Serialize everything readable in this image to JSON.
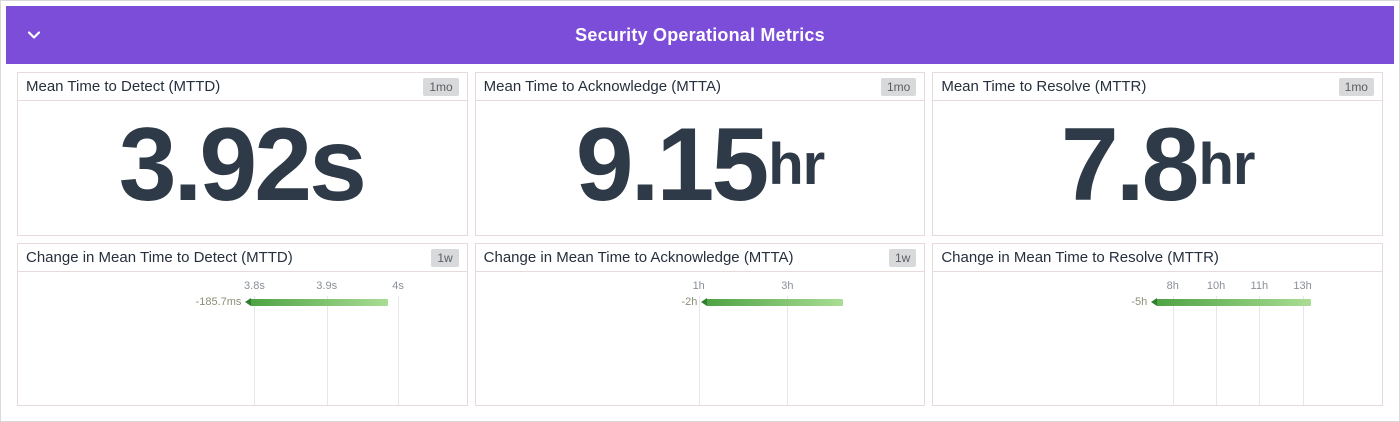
{
  "colors": {
    "header_bg": "#7c4dd8",
    "header_text": "#ffffff",
    "panel_border": "#e7dada",
    "stat_text": "#2e3a47",
    "badge_bg": "#d8d9da",
    "bar_gradient_start": "#4fa344",
    "bar_gradient_end": "#aadd94",
    "marker_green": "#2f7d2f"
  },
  "header": {
    "title": "Security Operational Metrics",
    "collapse_icon": "chevron-down-icon"
  },
  "stat_panels": [
    {
      "title": "Mean Time to Detect (MTTD)",
      "badge": "1mo",
      "value": "3.92s",
      "unit": ""
    },
    {
      "title": "Mean Time to Acknowledge (MTTA)",
      "badge": "1mo",
      "value": "9.15",
      "unit": "hr"
    },
    {
      "title": "Mean Time to Resolve (MTTR)",
      "badge": "1mo",
      "value": "7.8",
      "unit": "hr"
    }
  ],
  "change_panels": [
    {
      "title": "Change in Mean Time to Detect (MTTD)",
      "badge": "1w",
      "value": "-185.7ms",
      "ticks": [
        {
          "label": "3.8s",
          "pos": 52.8
        },
        {
          "label": "3.9s",
          "pos": 69.5
        },
        {
          "label": "4s",
          "pos": 86.0
        }
      ],
      "bar": {
        "start": 52.1,
        "end": 83.7
      }
    },
    {
      "title": "Change in Mean Time to Acknowledge (MTTA)",
      "badge": "1w",
      "value": "-2h",
      "ticks": [
        {
          "label": "1h",
          "pos": 49.7
        },
        {
          "label": "3h",
          "pos": 70.2
        }
      ],
      "bar": {
        "start": 51.7,
        "end": 83.1
      }
    },
    {
      "title": "Change in Mean Time to Resolve (MTTR)",
      "badge": "",
      "value": "-5h",
      "ticks": [
        {
          "label": "8h",
          "pos": 53.5
        },
        {
          "label": "10h",
          "pos": 63.5
        },
        {
          "label": "11h",
          "pos": 73.5
        },
        {
          "label": "13h",
          "pos": 83.5
        }
      ],
      "bar": {
        "start": 49.9,
        "end": 85.5
      }
    }
  ],
  "chart_data": [
    {
      "type": "stat",
      "title": "Mean Time to Detect (MTTD)",
      "interval": "1mo",
      "value": 3.92,
      "unit": "s",
      "display": "3.92s"
    },
    {
      "type": "stat",
      "title": "Mean Time to Acknowledge (MTTA)",
      "interval": "1mo",
      "value": 9.15,
      "unit": "hr",
      "display": "9.15hr"
    },
    {
      "type": "stat",
      "title": "Mean Time to Resolve (MTTR)",
      "interval": "1mo",
      "value": 7.8,
      "unit": "hr",
      "display": "7.8hr"
    },
    {
      "type": "bar",
      "orientation": "horizontal",
      "title": "Change in Mean Time to Detect (MTTD)",
      "interval": "1w",
      "value_label": "-185.7ms",
      "axis_ticks": [
        "3.8s",
        "3.9s",
        "4s"
      ],
      "bar_color": "green"
    },
    {
      "type": "bar",
      "orientation": "horizontal",
      "title": "Change in Mean Time to Acknowledge (MTTA)",
      "interval": "1w",
      "value_label": "-2h",
      "axis_ticks": [
        "1h",
        "3h"
      ],
      "bar_color": "green"
    },
    {
      "type": "bar",
      "orientation": "horizontal",
      "title": "Change in Mean Time to Resolve (MTTR)",
      "interval": "",
      "value_label": "-5h",
      "axis_ticks": [
        "8h",
        "10h",
        "11h",
        "13h"
      ],
      "bar_color": "green"
    }
  ]
}
